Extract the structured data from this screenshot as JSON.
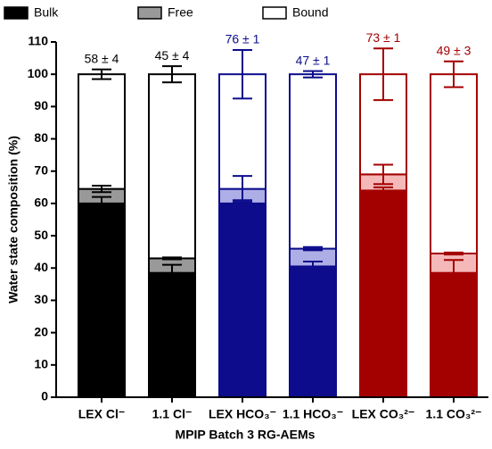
{
  "chart_data": {
    "type": "stacked-bar",
    "xlabel": "MPIP Batch 3 RG-AEMs",
    "ylabel": "Water state composition (%)",
    "categories": [
      "LEX Cl⁻",
      "1.1 Cl⁻",
      "LEX HCO₃⁻",
      "1.1 HCO₃⁻",
      "LEX CO₃²⁻",
      "1.1 CO₃²⁻"
    ],
    "edge_colors": [
      "#000000",
      "#000000",
      "#0c0c8c",
      "#0c0c8c",
      "#a30000",
      "#a30000"
    ],
    "series": [
      {
        "name": "Bulk",
        "color": "#000000",
        "colors": [
          "#000000",
          "#000000",
          "#0c0c8c",
          "#0c0c8c",
          "#a30000",
          "#a30000"
        ],
        "values": [
          60,
          38.5,
          60,
          40.5,
          64,
          38.5
        ],
        "errors": [
          2,
          2.5,
          1,
          1.5,
          1,
          4
        ]
      },
      {
        "name": "Free",
        "color": "#999999",
        "colors": [
          "#999999",
          "#999999",
          "#aeaee6",
          "#aeaee6",
          "#f4b8b8",
          "#f4b8b8"
        ],
        "values": [
          4.5,
          4.5,
          4.5,
          5.5,
          5,
          6
        ],
        "errors": [
          1,
          0.3,
          4,
          0.5,
          3,
          0.3
        ]
      },
      {
        "name": "Bound",
        "color": "#ffffff",
        "colors": [
          "#ffffff",
          "#ffffff",
          "#ffffff",
          "#ffffff",
          "#ffffff",
          "#ffffff"
        ],
        "values": [
          35.5,
          57,
          35.5,
          54,
          31,
          55.5
        ],
        "errors": [
          1.5,
          2.5,
          7.5,
          1,
          8,
          4
        ]
      }
    ],
    "annotations": [
      "58 ± 4",
      "45 ± 4",
      "76 ± 1",
      "47 ± 1",
      "73 ± 1",
      "49 ± 3"
    ],
    "ylim": [
      0,
      110
    ],
    "yticks": [
      0,
      10,
      20,
      30,
      40,
      50,
      60,
      70,
      80,
      90,
      100,
      110
    ]
  }
}
